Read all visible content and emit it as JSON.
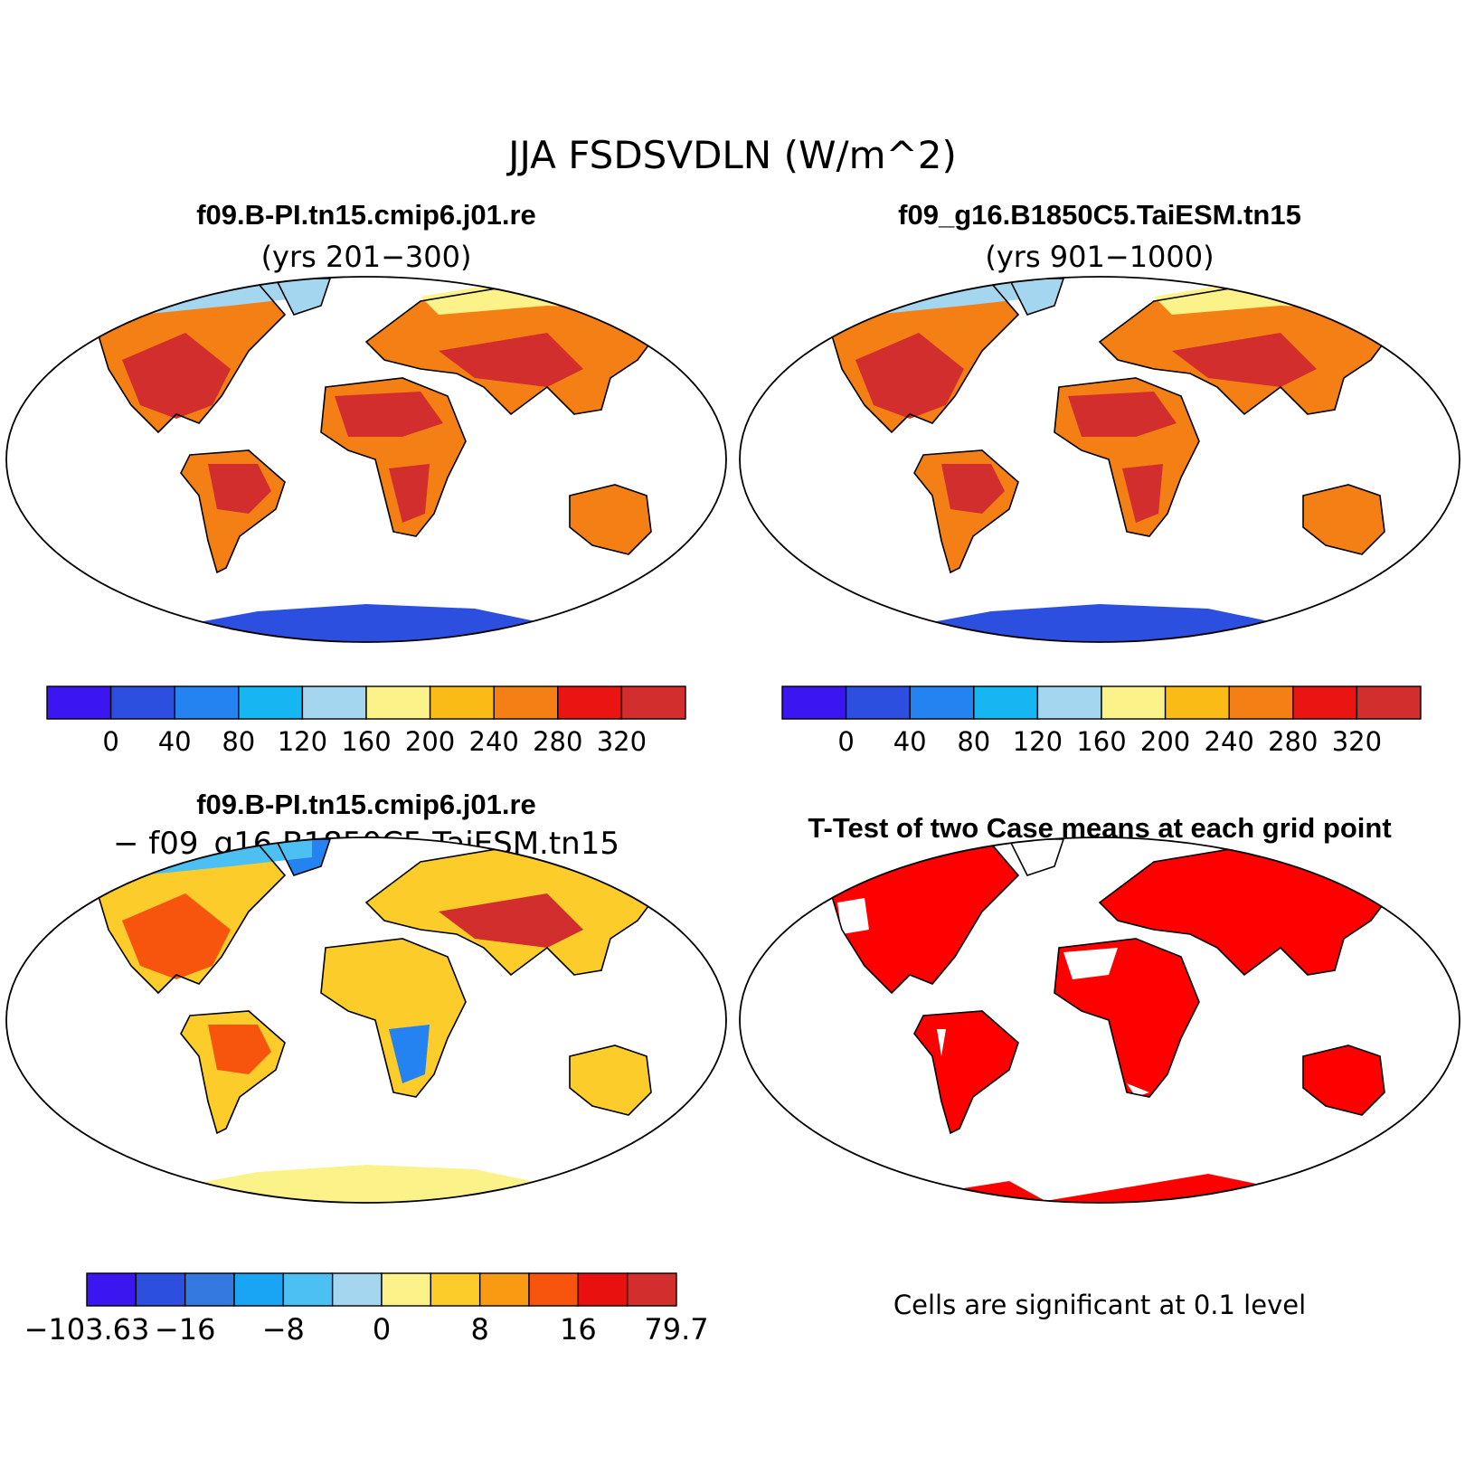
{
  "figure_title": "JJA FSDSVDLN (W/m^2)",
  "panels": [
    {
      "id": "case1",
      "title": "f09.B-PI.tn15.cmip6.j01.re",
      "subtitle": "(yrs 201−300)",
      "colorbar": {
        "colors": [
          "#3b16f0",
          "#2d4fe0",
          "#2483f0",
          "#16b6f2",
          "#a4d6f0",
          "#fbf28a",
          "#fbbb17",
          "#f47f14",
          "#ea1512",
          "#d22e2e"
        ],
        "labels": [
          "0",
          "40",
          "80",
          "120",
          "160",
          "200",
          "240",
          "280",
          "320"
        ]
      }
    },
    {
      "id": "case2",
      "title": "f09_g16.B1850C5.TaiESM.tn15",
      "subtitle": "(yrs 901−1000)",
      "colorbar": {
        "colors": [
          "#3b16f0",
          "#2d4fe0",
          "#2483f0",
          "#16b6f2",
          "#a4d6f0",
          "#fbf28a",
          "#fbbb17",
          "#f47f14",
          "#ea1512",
          "#d22e2e"
        ],
        "labels": [
          "0",
          "40",
          "80",
          "120",
          "160",
          "200",
          "240",
          "280",
          "320"
        ]
      }
    },
    {
      "id": "difference",
      "title": "f09.B-PI.tn15.cmip6.j01.re",
      "subtitle": "− f09_g16.B1850C5.TaiESM.tn15",
      "colorbar": {
        "colors": [
          "#3b16f0",
          "#2d4fe0",
          "#3479e0",
          "#1aa4f4",
          "#4cc0f2",
          "#a4d6f0",
          "#fbf28a",
          "#fbcc2a",
          "#f89a12",
          "#f7550e",
          "#e8110f",
          "#d22e2e"
        ],
        "labels": [
          "−103.63",
          "−16",
          "−8",
          "0",
          "8",
          "16",
          "79.7"
        ]
      }
    },
    {
      "id": "ttest",
      "title": "T-Test of two Case means at each grid point",
      "note": "Cells are significant at 0.1 level",
      "colors": {
        "significant": "#ff0000"
      }
    }
  ]
}
